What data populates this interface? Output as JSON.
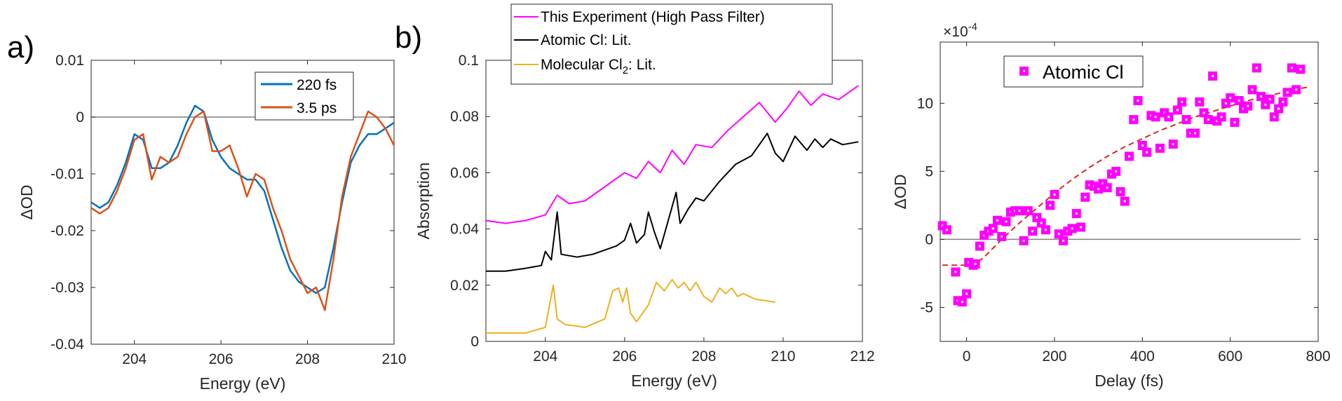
{
  "panel_labels": {
    "a": "a)",
    "b": "b)"
  },
  "chart_data": [
    {
      "id": "a",
      "type": "line",
      "title": "",
      "xlabel": "Energy (eV)",
      "ylabel": "ΔOD",
      "xlim": [
        203,
        210
      ],
      "ylim": [
        -0.04,
        0.01
      ],
      "xticks": [
        204,
        206,
        208,
        210
      ],
      "xtick_labels": [
        "204",
        "206",
        "208",
        "210"
      ],
      "yticks": [
        0.01,
        0,
        -0.01,
        -0.02,
        -0.03,
        -0.04
      ],
      "ytick_labels": [
        "0.01",
        "0",
        "-0.01",
        "-0.02",
        "-0.03",
        "-0.04"
      ],
      "zero_line": true,
      "legend_position": "top-right",
      "series": [
        {
          "name": "220 fs",
          "color": "#0072BD",
          "x": [
            203.0,
            203.2,
            203.4,
            203.6,
            203.8,
            204.0,
            204.2,
            204.4,
            204.6,
            204.8,
            205.0,
            205.2,
            205.4,
            205.6,
            205.8,
            206.0,
            206.2,
            206.4,
            206.6,
            206.8,
            207.0,
            207.2,
            207.4,
            207.6,
            207.8,
            208.0,
            208.2,
            208.4,
            208.6,
            208.8,
            209.0,
            209.2,
            209.4,
            209.6,
            209.8,
            210.0
          ],
          "y": [
            -0.015,
            -0.016,
            -0.015,
            -0.012,
            -0.008,
            -0.003,
            -0.004,
            -0.009,
            -0.009,
            -0.008,
            -0.005,
            -0.001,
            0.002,
            0.001,
            -0.004,
            -0.007,
            -0.009,
            -0.01,
            -0.011,
            -0.011,
            -0.013,
            -0.018,
            -0.023,
            -0.027,
            -0.029,
            -0.03,
            -0.031,
            -0.03,
            -0.023,
            -0.015,
            -0.008,
            -0.005,
            -0.003,
            -0.003,
            -0.002,
            -0.001
          ]
        },
        {
          "name": "3.5 ps",
          "color": "#D95319",
          "x": [
            203.0,
            203.2,
            203.4,
            203.6,
            203.8,
            204.0,
            204.2,
            204.4,
            204.6,
            204.8,
            205.0,
            205.2,
            205.4,
            205.6,
            205.8,
            206.0,
            206.2,
            206.4,
            206.6,
            206.8,
            207.0,
            207.2,
            207.4,
            207.6,
            207.8,
            208.0,
            208.2,
            208.4,
            208.6,
            208.8,
            209.0,
            209.2,
            209.4,
            209.6,
            209.8,
            210.0
          ],
          "y": [
            -0.016,
            -0.017,
            -0.016,
            -0.013,
            -0.009,
            -0.004,
            -0.003,
            -0.011,
            -0.007,
            -0.008,
            -0.007,
            -0.003,
            0.0,
            0.001,
            -0.006,
            -0.006,
            -0.005,
            -0.009,
            -0.014,
            -0.01,
            -0.011,
            -0.016,
            -0.02,
            -0.025,
            -0.028,
            -0.031,
            -0.03,
            -0.034,
            -0.025,
            -0.014,
            -0.007,
            -0.003,
            0.001,
            0.0,
            -0.002,
            -0.005
          ]
        }
      ]
    },
    {
      "id": "b",
      "type": "line",
      "title": "",
      "xlabel": "Energy (eV)",
      "ylabel": "Absorption",
      "xlim": [
        202.5,
        212
      ],
      "ylim": [
        0,
        0.1
      ],
      "xticks": [
        204,
        206,
        208,
        210,
        212
      ],
      "xtick_labels": [
        "204",
        "206",
        "208",
        "210",
        "212"
      ],
      "yticks": [
        0.1,
        0.08,
        0.06,
        0.04,
        0.02,
        0
      ],
      "ytick_labels": [
        "0.1",
        "0.08",
        "0.06",
        "0.04",
        "0.02",
        "0"
      ],
      "legend_position": "top-outside",
      "series": [
        {
          "name": "This Experiment (High Pass Filter)",
          "color": "#FF00FF",
          "x": [
            202.5,
            203.0,
            203.5,
            204.0,
            204.3,
            204.6,
            205.0,
            205.4,
            205.8,
            206.0,
            206.3,
            206.6,
            206.9,
            207.2,
            207.5,
            207.8,
            208.2,
            208.6,
            209.0,
            209.4,
            209.8,
            210.1,
            210.4,
            210.7,
            211.0,
            211.4,
            211.9
          ],
          "y": [
            0.043,
            0.042,
            0.043,
            0.045,
            0.052,
            0.049,
            0.05,
            0.054,
            0.058,
            0.06,
            0.058,
            0.064,
            0.06,
            0.068,
            0.063,
            0.07,
            0.069,
            0.075,
            0.08,
            0.085,
            0.078,
            0.083,
            0.089,
            0.084,
            0.088,
            0.086,
            0.091
          ]
        },
        {
          "name": "Atomic Cl: Lit.",
          "color": "#000000",
          "x": [
            202.5,
            203.0,
            203.5,
            203.9,
            204.0,
            204.15,
            204.3,
            204.4,
            204.8,
            205.2,
            205.8,
            206.0,
            206.15,
            206.3,
            206.5,
            206.6,
            206.75,
            206.9,
            207.0,
            207.3,
            207.4,
            207.6,
            207.8,
            208.0,
            208.4,
            208.8,
            209.2,
            209.6,
            209.8,
            210.0,
            210.3,
            210.6,
            210.8,
            211.0,
            211.2,
            211.5,
            211.9
          ],
          "y": [
            0.025,
            0.025,
            0.026,
            0.027,
            0.032,
            0.029,
            0.046,
            0.031,
            0.03,
            0.031,
            0.034,
            0.036,
            0.042,
            0.035,
            0.038,
            0.046,
            0.039,
            0.033,
            0.038,
            0.053,
            0.042,
            0.047,
            0.051,
            0.05,
            0.057,
            0.063,
            0.066,
            0.074,
            0.067,
            0.064,
            0.073,
            0.068,
            0.072,
            0.069,
            0.072,
            0.07,
            0.071
          ]
        },
        {
          "name": "Molecular Cl2: Lit.",
          "legend_label_main": "Molecular Cl",
          "legend_label_sub": "2",
          "legend_label_tail": ": Lit.",
          "color": "#EDB120",
          "x": [
            202.5,
            203.5,
            204.0,
            204.2,
            204.3,
            204.5,
            205.0,
            205.5,
            205.7,
            205.85,
            205.95,
            206.05,
            206.15,
            206.3,
            206.6,
            206.8,
            207.0,
            207.2,
            207.35,
            207.5,
            207.65,
            207.8,
            208.0,
            208.2,
            208.4,
            208.55,
            208.7,
            208.85,
            209.0,
            209.3,
            209.8
          ],
          "y": [
            0.003,
            0.003,
            0.005,
            0.02,
            0.008,
            0.006,
            0.005,
            0.008,
            0.018,
            0.019,
            0.014,
            0.019,
            0.01,
            0.007,
            0.013,
            0.021,
            0.018,
            0.022,
            0.019,
            0.021,
            0.018,
            0.021,
            0.016,
            0.014,
            0.019,
            0.017,
            0.019,
            0.016,
            0.017,
            0.015,
            0.014
          ]
        }
      ]
    },
    {
      "id": "c",
      "type": "scatter",
      "title": "",
      "xlabel": "Delay (fs)",
      "ylabel": "ΔOD",
      "exponent_label": "×10",
      "exponent_power": "-4",
      "xlim": [
        -60,
        800
      ],
      "ylim": [
        -7.5,
        14.5
      ],
      "xticks": [
        0,
        200,
        400,
        600,
        800
      ],
      "xtick_labels": [
        "0",
        "200",
        "400",
        "600",
        "800"
      ],
      "yticks": [
        10,
        5,
        0,
        -5
      ],
      "ytick_labels": [
        "10",
        "5",
        "0",
        "-5"
      ],
      "zero_line_xrange": [
        -60,
        760
      ],
      "legend_position": "top-left",
      "series": [
        {
          "name": "Atomic Cl",
          "color": "#FF00FF",
          "marker": "square",
          "x": [
            -55,
            -45,
            -25,
            -20,
            -10,
            0,
            5,
            15,
            20,
            30,
            40,
            50,
            60,
            70,
            80,
            90,
            100,
            110,
            120,
            130,
            140,
            150,
            160,
            170,
            180,
            190,
            200,
            210,
            220,
            230,
            240,
            250,
            260,
            270,
            280,
            290,
            300,
            310,
            320,
            330,
            340,
            350,
            360,
            370,
            380,
            390,
            400,
            410,
            420,
            430,
            440,
            450,
            460,
            470,
            480,
            490,
            500,
            510,
            520,
            530,
            540,
            550,
            560,
            570,
            580,
            590,
            600,
            610,
            620,
            630,
            640,
            650,
            660,
            670,
            680,
            690,
            700,
            710,
            720,
            730,
            740,
            750,
            760
          ],
          "y": [
            1.0,
            0.7,
            -2.4,
            -4.5,
            -4.6,
            -4.0,
            -1.7,
            -1.9,
            -1.8,
            -0.5,
            0.3,
            0.6,
            0.8,
            1.4,
            0.2,
            1.3,
            2.0,
            2.1,
            2.1,
            -0.1,
            2.1,
            0.6,
            1.6,
            1.2,
            0.7,
            2.5,
            3.3,
            0.4,
            -0.1,
            0.6,
            0.8,
            1.9,
            0.9,
            3.1,
            4.0,
            3.9,
            3.7,
            4.1,
            3.8,
            4.8,
            5.0,
            3.5,
            2.8,
            6.1,
            8.8,
            10.2,
            6.9,
            6.4,
            9.1,
            9.0,
            6.7,
            9.3,
            9.0,
            7.0,
            9.5,
            10.1,
            8.8,
            7.8,
            7.8,
            10.1,
            9.3,
            8.8,
            12.0,
            8.7,
            9.0,
            10.0,
            10.4,
            8.6,
            10.2,
            9.6,
            9.8,
            11.0,
            12.6,
            10.5,
            9.9,
            10.3,
            9.0,
            9.6,
            10.1,
            10.8,
            12.6,
            11.0,
            12.5
          ]
        },
        {
          "name": "fit",
          "color": "#D62728",
          "style": "dashed",
          "x": [
            -55,
            0,
            20,
            40,
            80,
            120,
            160,
            200,
            240,
            280,
            320,
            360,
            400,
            440,
            480,
            520,
            560,
            600,
            640,
            680,
            720,
            760,
            780
          ],
          "y": [
            -1.9,
            -1.9,
            -1.8,
            -1.3,
            0.0,
            1.2,
            2.3,
            3.4,
            4.4,
            5.3,
            6.1,
            6.8,
            7.4,
            8.0,
            8.5,
            9.0,
            9.4,
            9.8,
            10.2,
            10.5,
            10.8,
            11.1,
            11.2
          ]
        }
      ]
    }
  ]
}
